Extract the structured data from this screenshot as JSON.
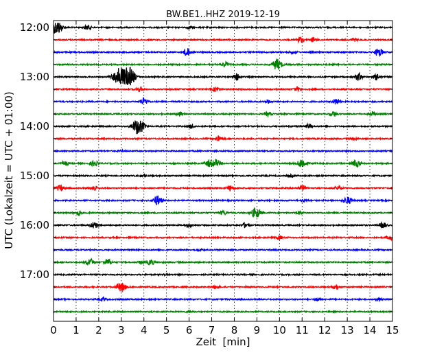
{
  "chart_data": {
    "type": "line",
    "title": "BW.BE1..HHZ 2019-12-19",
    "xlabel": "Zeit  [min]",
    "ylabel": "UTC (Lokalzeit = UTC + 01:00)",
    "xlim": [
      0,
      15
    ],
    "x_ticks": [
      0,
      1,
      2,
      3,
      4,
      5,
      6,
      7,
      8,
      9,
      10,
      11,
      12,
      13,
      14,
      15
    ],
    "x_grid": "dotted",
    "trace_interval_min": 15,
    "y_ticks": [
      "12:00",
      "13:00",
      "14:00",
      "15:00",
      "16:00",
      "17:00"
    ],
    "colors": [
      "#000000",
      "#ff0000",
      "#0000ff",
      "#008000"
    ],
    "traces": [
      {
        "start": "12:00",
        "events": [
          [
            0.15,
            1.0
          ],
          [
            1.5,
            0.35
          ],
          [
            6.0,
            0.15
          ]
        ]
      },
      {
        "start": "12:15",
        "events": [
          [
            10.9,
            0.45
          ],
          [
            11.5,
            0.3
          ],
          [
            13.3,
            0.2
          ]
        ]
      },
      {
        "start": "12:30",
        "events": [
          [
            5.9,
            0.55
          ],
          [
            10.6,
            0.2
          ],
          [
            14.4,
            0.6
          ]
        ]
      },
      {
        "start": "12:45",
        "events": [
          [
            7.6,
            0.35
          ],
          [
            9.9,
            0.8
          ]
        ]
      },
      {
        "start": "13:00",
        "events": [
          [
            2.9,
            1.3
          ],
          [
            3.35,
            1.3
          ],
          [
            8.1,
            0.5
          ],
          [
            13.5,
            0.5
          ],
          [
            14.3,
            0.4
          ]
        ]
      },
      {
        "start": "13:15",
        "events": [
          [
            3.8,
            0.35
          ],
          [
            7.2,
            0.35
          ],
          [
            10.8,
            0.3
          ]
        ]
      },
      {
        "start": "13:30",
        "events": [
          [
            4.0,
            0.5
          ],
          [
            9.5,
            0.2
          ],
          [
            12.5,
            0.4
          ]
        ]
      },
      {
        "start": "13:45",
        "events": [
          [
            5.6,
            0.3
          ],
          [
            9.5,
            0.3
          ],
          [
            12.4,
            0.35
          ],
          [
            14.1,
            0.3
          ]
        ]
      },
      {
        "start": "14:00",
        "events": [
          [
            3.75,
            1.2
          ],
          [
            6.1,
            0.3
          ],
          [
            11.3,
            0.3
          ]
        ]
      },
      {
        "start": "14:15",
        "events": [
          [
            7.3,
            0.4
          ],
          [
            13.3,
            0.15
          ]
        ]
      },
      {
        "start": "14:30",
        "events": [
          [
            3.0,
            0.1
          ]
        ]
      },
      {
        "start": "14:45",
        "events": [
          [
            0.5,
            0.3
          ],
          [
            1.8,
            0.4
          ],
          [
            6.9,
            0.5
          ],
          [
            7.2,
            0.5
          ],
          [
            11.0,
            0.7
          ],
          [
            13.4,
            0.5
          ]
        ]
      },
      {
        "start": "15:00",
        "events": [
          [
            4.0,
            0.2
          ],
          [
            10.5,
            0.15
          ]
        ]
      },
      {
        "start": "15:15",
        "events": [
          [
            0.3,
            0.45
          ],
          [
            1.8,
            0.4
          ],
          [
            7.85,
            0.4
          ],
          [
            11.0,
            0.35
          ],
          [
            12.6,
            0.3
          ]
        ]
      },
      {
        "start": "15:30",
        "events": [
          [
            4.6,
            0.7
          ],
          [
            13.0,
            0.55
          ],
          [
            11.1,
            0.2
          ]
        ]
      },
      {
        "start": "15:45",
        "events": [
          [
            1.1,
            0.3
          ],
          [
            7.5,
            0.3
          ],
          [
            8.95,
            0.75
          ],
          [
            10.9,
            0.2
          ]
        ]
      },
      {
        "start": "16:00",
        "events": [
          [
            1.8,
            0.5
          ],
          [
            6.0,
            0.3
          ],
          [
            8.5,
            0.35
          ],
          [
            14.6,
            0.4
          ]
        ]
      },
      {
        "start": "16:15",
        "events": [
          [
            10.0,
            0.25
          ],
          [
            14.9,
            0.3
          ]
        ]
      },
      {
        "start": "16:30",
        "events": [
          [
            6.5,
            0.15
          ]
        ]
      },
      {
        "start": "16:45",
        "events": [
          [
            1.6,
            0.55
          ],
          [
            2.4,
            0.45
          ],
          [
            4.3,
            0.4
          ],
          [
            3.9,
            0.2
          ]
        ]
      },
      {
        "start": "17:00",
        "events": [
          [
            5.0,
            0.1
          ]
        ]
      },
      {
        "start": "17:15",
        "events": [
          [
            3.0,
            0.7
          ],
          [
            7.2,
            0.3
          ],
          [
            12.5,
            0.35
          ]
        ]
      },
      {
        "start": "17:30",
        "events": [
          [
            2.2,
            0.2
          ],
          [
            11.7,
            0.25
          ],
          [
            14.4,
            0.15
          ]
        ]
      },
      {
        "start": "17:45",
        "events": [
          [
            6.0,
            0.1
          ]
        ]
      }
    ]
  }
}
